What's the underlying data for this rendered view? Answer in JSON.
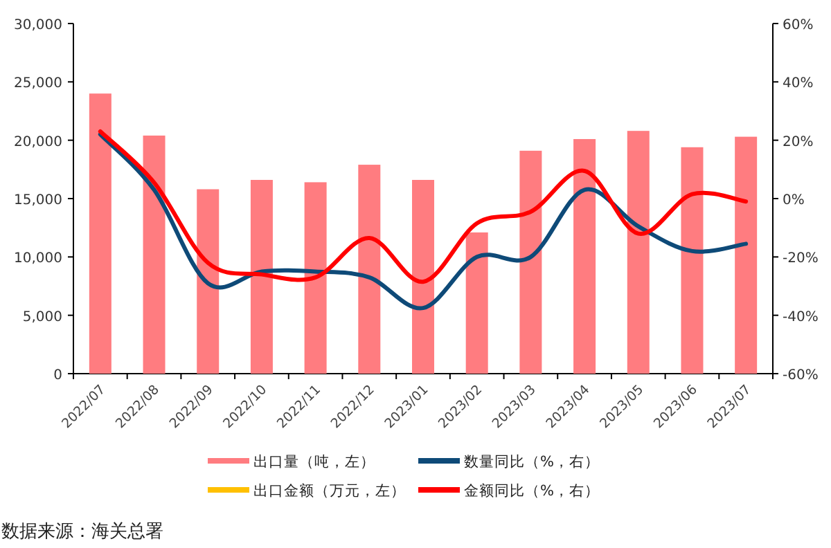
{
  "chart_data": {
    "type": "bar",
    "categories": [
      "2022/07",
      "2022/08",
      "2022/09",
      "2022/10",
      "2022/11",
      "2022/12",
      "2023/01",
      "2023/02",
      "2023/03",
      "2023/04",
      "2023/05",
      "2023/06",
      "2023/07"
    ],
    "series": [
      {
        "name": "出口量（吨，左）",
        "axis": "y",
        "color": "#ff7c80",
        "values": [
          24000,
          20400,
          15800,
          16600,
          16400,
          17900,
          16600,
          12100,
          19100,
          20100,
          20800,
          19400,
          20300
        ]
      },
      {
        "name": "数量同比（%，右）",
        "type": "line",
        "axis": "y2",
        "color": "#0e4a78",
        "values": [
          22,
          3,
          -29,
          -25,
          -25,
          -27,
          -37.5,
          -20,
          -20,
          3,
          -9.5,
          -18,
          -15.5
        ]
      },
      {
        "name": "出口金额（万元，左）",
        "type": "line",
        "axis": "y",
        "color": "#ffc000",
        "values": [
          null,
          null,
          null,
          null,
          null,
          null,
          null,
          null,
          null,
          null,
          null,
          null,
          null
        ]
      },
      {
        "name": "金额同比（%，右）",
        "type": "line",
        "axis": "y2",
        "color": "#ff0000",
        "values": [
          23,
          5.5,
          -22,
          -26,
          -27,
          -13.5,
          -28.5,
          -8.5,
          -4.5,
          9.5,
          -12,
          1.5,
          -1
        ]
      }
    ],
    "ylim": [
      0,
      30000
    ],
    "yticks": [
      {
        "value": 0,
        "label": "0"
      },
      {
        "value": 5000,
        "label": "5,000"
      },
      {
        "value": 10000,
        "label": "10,000"
      },
      {
        "value": 15000,
        "label": "15,000"
      },
      {
        "value": 20000,
        "label": "20,000"
      },
      {
        "value": 25000,
        "label": "25,000"
      },
      {
        "value": 30000,
        "label": "30,000"
      }
    ],
    "y2lim": [
      -60,
      60
    ],
    "y2ticks": [
      {
        "value": -60,
        "label": "-60%"
      },
      {
        "value": -40,
        "label": "-40%"
      },
      {
        "value": -20,
        "label": "-20%"
      },
      {
        "value": 0,
        "label": "0%"
      },
      {
        "value": 20,
        "label": "20%"
      },
      {
        "value": 40,
        "label": "40%"
      },
      {
        "value": 60,
        "label": "60%"
      }
    ],
    "legend": "bottom",
    "annotations": [
      "数据来源：海关总署"
    ]
  }
}
